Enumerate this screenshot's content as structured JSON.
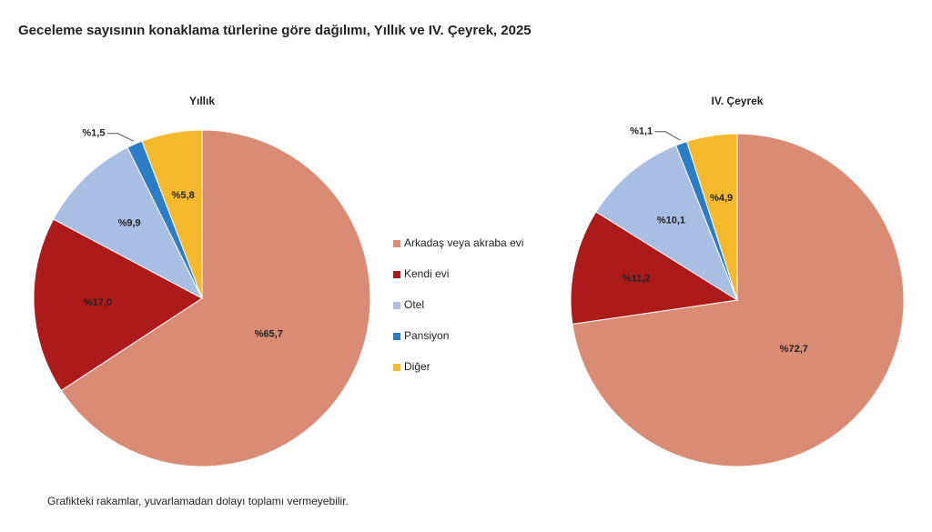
{
  "title": "Geceleme sayısının konaklama türlerine göre dağılımı, Yıllık ve IV. Çeyrek, 2025",
  "note": "Grafikteki rakamlar, yuvarlamadan dolayı toplamı vermeyebilir.",
  "chart_data": [
    {
      "type": "pie",
      "title": "Yıllık",
      "categories": [
        "Arkadaş veya akraba evi",
        "Kendi evi",
        "Otel",
        "Pansiyon",
        "Diğer"
      ],
      "values": [
        65.7,
        17.0,
        9.9,
        1.5,
        5.8
      ],
      "value_labels": [
        "%65,7",
        "%17,0",
        "%9,9",
        "%1,5",
        "%5,8"
      ],
      "colors": [
        "#d98b74",
        "#ad1a1a",
        "#a8bfe3",
        "#2a7dc6",
        "#f6b92b"
      ]
    },
    {
      "type": "pie",
      "title": "IV. Çeyrek",
      "categories": [
        "Arkadaş veya akraba evi",
        "Kendi evi",
        "Otel",
        "Pansiyon",
        "Diğer"
      ],
      "values": [
        72.7,
        11.2,
        10.1,
        1.1,
        4.9
      ],
      "value_labels": [
        "%72,7",
        "%11,2",
        "%10,1",
        "%1,1",
        "%4,9"
      ],
      "colors": [
        "#d98b74",
        "#ad1a1a",
        "#a8bfe3",
        "#2a7dc6",
        "#f6b92b"
      ]
    }
  ]
}
